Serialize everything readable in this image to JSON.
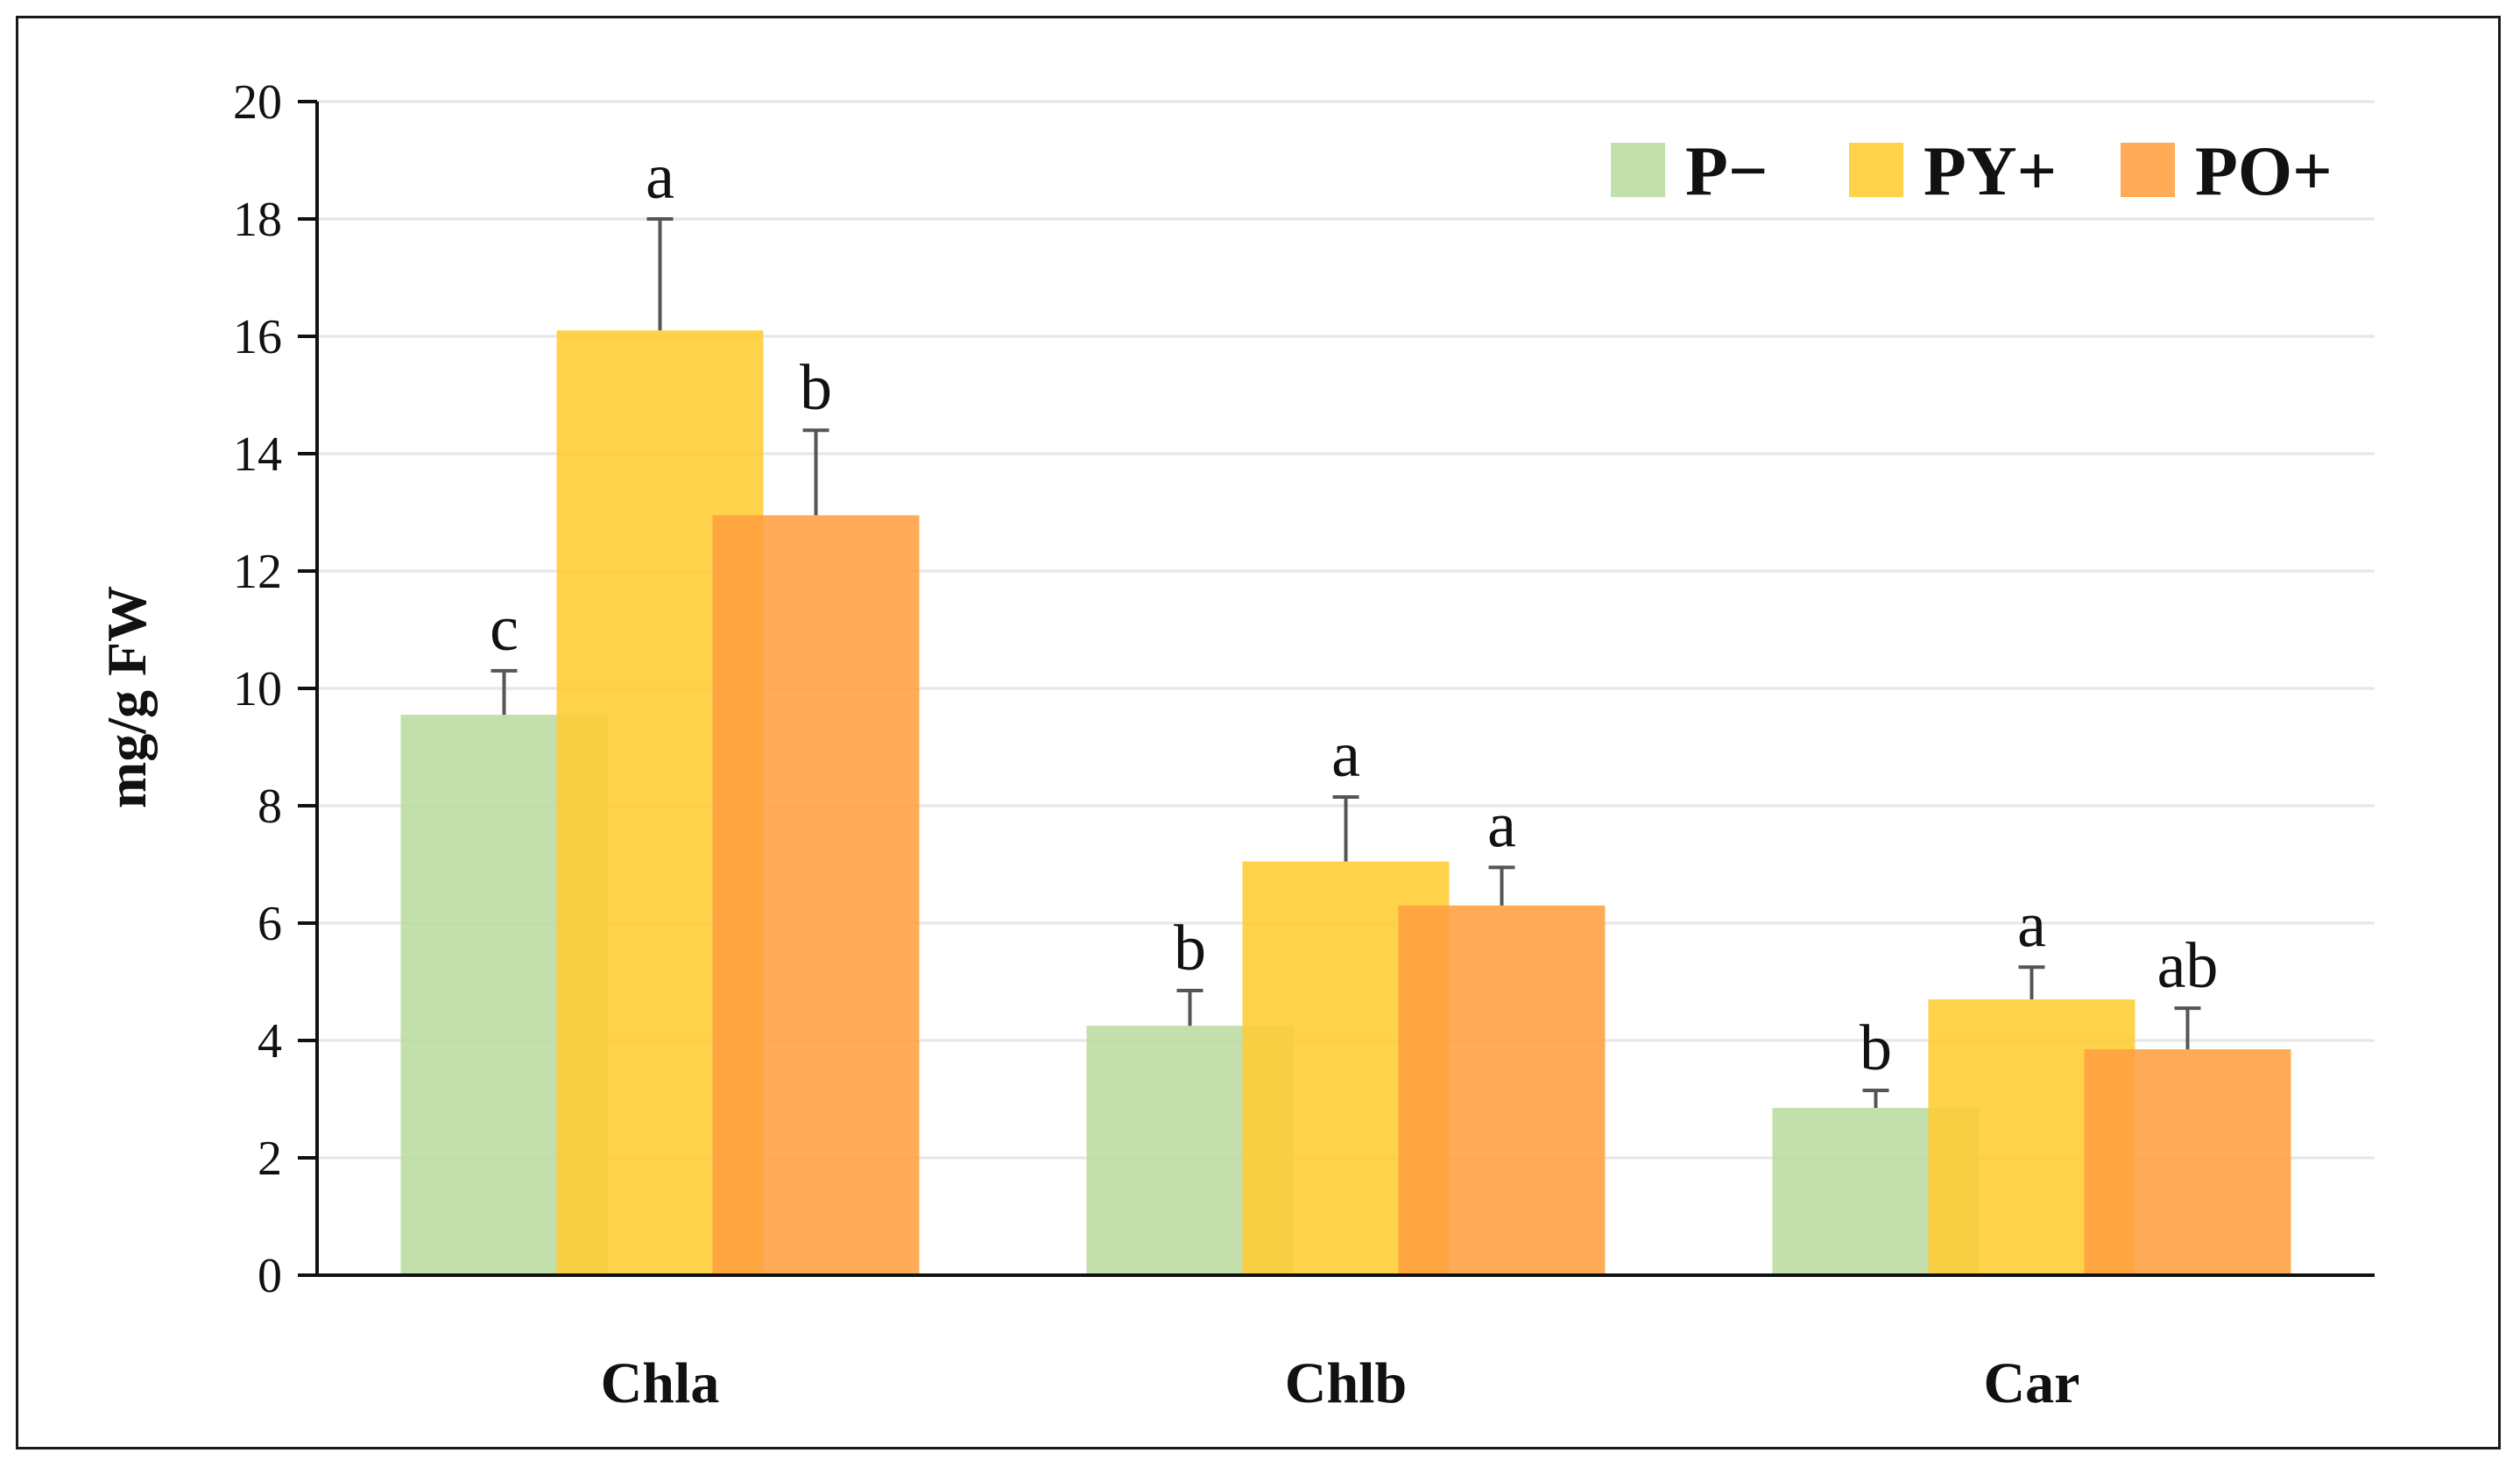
{
  "chart_data": {
    "type": "bar",
    "title": "",
    "xlabel": "",
    "ylabel": "mg/g FW",
    "ylim": [
      0,
      20
    ],
    "yticks": [
      0,
      2,
      4,
      6,
      8,
      10,
      12,
      14,
      16,
      18,
      20
    ],
    "grid": true,
    "legend_position": "top-right",
    "categories": [
      "Chla",
      "Chlb",
      "Car"
    ],
    "series": [
      {
        "name": "P−",
        "color": "#b9dba0",
        "values": [
          9.55,
          4.25,
          2.85
        ],
        "errors": [
          0.75,
          0.6,
          0.3
        ],
        "labels": [
          "c",
          "b",
          "b"
        ]
      },
      {
        "name": "PY+",
        "color": "#ffcc33",
        "values": [
          16.1,
          7.05,
          4.7
        ],
        "errors": [
          1.9,
          1.1,
          0.55
        ],
        "labels": [
          "a",
          "a",
          "a"
        ]
      },
      {
        "name": "PO+",
        "color": "#ff9f40",
        "values": [
          12.95,
          6.3,
          3.85
        ],
        "errors": [
          1.45,
          0.65,
          0.7
        ],
        "labels": [
          "b",
          "a",
          "ab"
        ]
      }
    ]
  }
}
